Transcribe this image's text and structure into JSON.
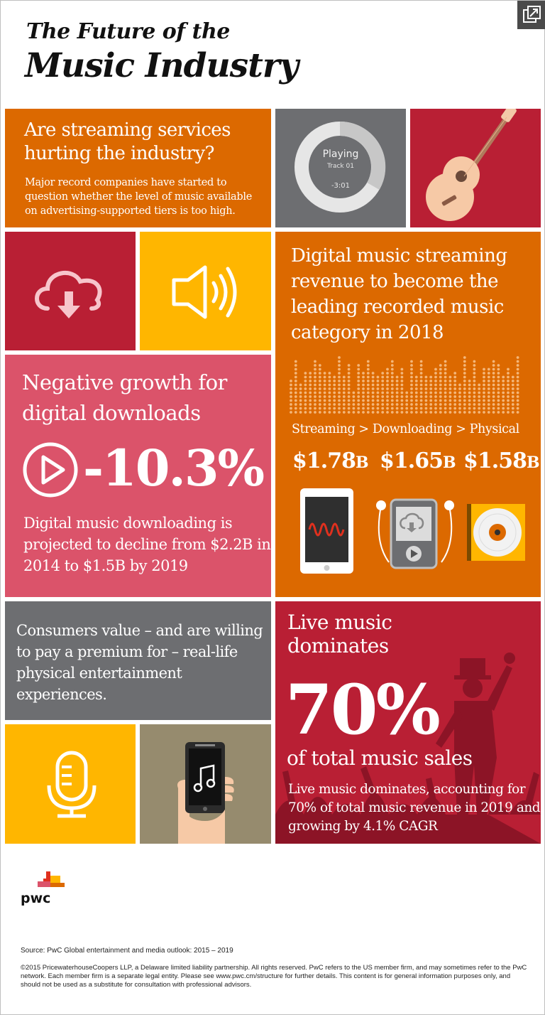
{
  "title": {
    "line1": "The Future of the",
    "line2": "Music Industry"
  },
  "colors": {
    "orange": "#dc6900",
    "red": "#b91f34",
    "yellow": "#ffb600",
    "pink": "#db536a",
    "gray": "#6d6e71",
    "khaki": "#968b6e"
  },
  "streaming_question": {
    "title": "Are streaming services hurting the industry?",
    "text": "Major record companies have started to question whether the level of music available on advertising-supported tiers is too high."
  },
  "player": {
    "status": "Playing",
    "track": "Track 01",
    "time": "-3:01"
  },
  "icons": [
    "expand-icon",
    "guitar-icon",
    "cloud-download-icon",
    "speaker-icon",
    "play-icon",
    "phone-waveform-icon",
    "media-player-icon",
    "vinyl-record-icon",
    "microphone-icon",
    "phone-music-note-icon",
    "singer-silhouette-icon",
    "pwc-logo"
  ],
  "digital_streaming": {
    "title": "Digital music streaming revenue to become the leading recorded music category in 2018",
    "comparison": "Streaming > Downloading > Physical",
    "values": [
      {
        "amount": "$1.78",
        "unit": "B"
      },
      {
        "amount": "$1.65",
        "unit": "B"
      },
      {
        "amount": "$1.58",
        "unit": "B"
      }
    ]
  },
  "negative_growth": {
    "title": "Negative growth for digital downloads",
    "percent": "-10.3%",
    "text": "Digital music downloading is projected to decline from $2.2B in 2014 to $1.5B by 2019"
  },
  "consumers": {
    "text": "Consumers value – and are willing to pay a premium for – real-life physical entertainment experiences."
  },
  "live_music": {
    "title": "Live music dominates",
    "percent": "70%",
    "subtitle": "of total music sales",
    "text": "Live music dominates, accounting for 70% of total music revenue in 2019 and growing by 4.1% CAGR"
  },
  "brand": "pwc",
  "source": "Source: PwC Global entertainment and media outlook: 2015 – 2019",
  "copyright": "©2015 PricewaterhouseCoopers LLP, a Delaware limited liability partnership. All rights reserved.  PwC refers to the US member firm, and may sometimes refer to the PwC network. Each member firm is a separate legal entity.  Please see www.pwc.cm/structure for further details.  This content is for general information purposes only, and should not be used as a substitute for consultation with professional advisors."
}
